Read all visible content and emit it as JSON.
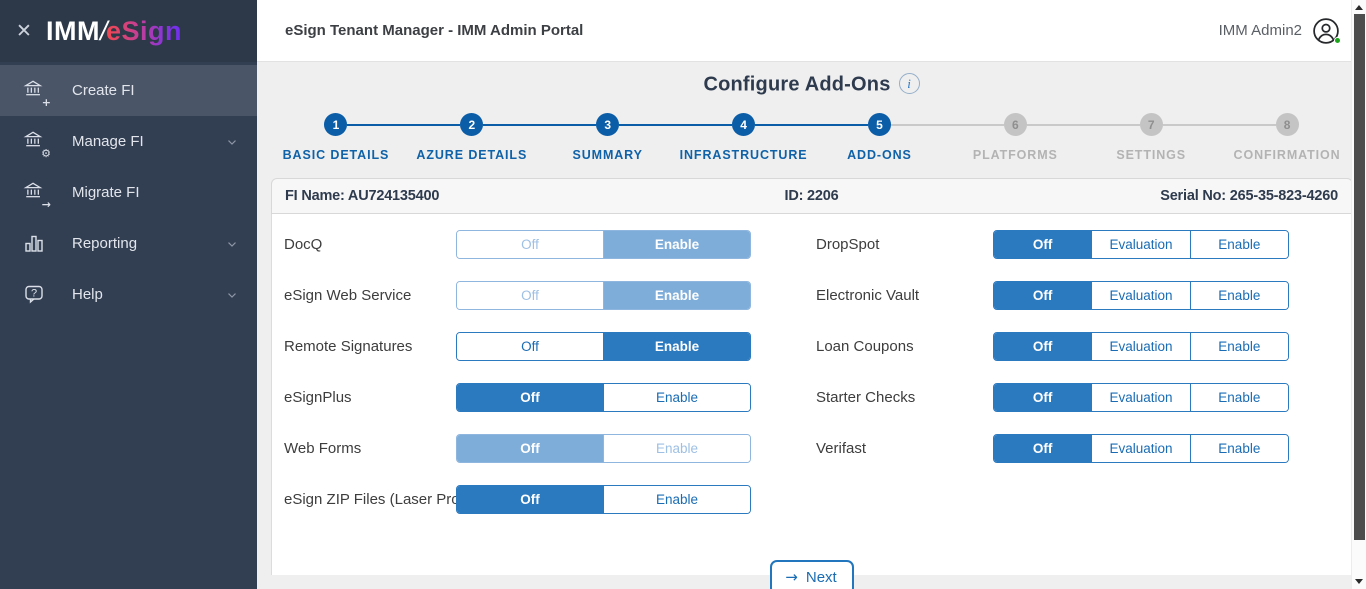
{
  "sidebar": {
    "close_label": "✕",
    "logo": {
      "imm": "IMM",
      "slash": "/",
      "esign": "eSign"
    },
    "items": [
      {
        "label": "Create FI",
        "icon": "bank-plus",
        "active": true,
        "chevron": false
      },
      {
        "label": "Manage FI",
        "icon": "bank-gear",
        "active": false,
        "chevron": true
      },
      {
        "label": "Migrate FI",
        "icon": "bank-arrow",
        "active": false,
        "chevron": false
      },
      {
        "label": "Reporting",
        "icon": "bar-chart",
        "active": false,
        "chevron": true
      },
      {
        "label": "Help",
        "icon": "help-bubble",
        "active": false,
        "chevron": true
      }
    ]
  },
  "header": {
    "title": "eSign Tenant Manager - IMM Admin Portal",
    "user_name": "IMM Admin2"
  },
  "page": {
    "title": "Configure Add-Ons",
    "info_icon": "i"
  },
  "stepper": {
    "steps": [
      {
        "num": "1",
        "label": "BASIC DETAILS",
        "state": "done"
      },
      {
        "num": "2",
        "label": "AZURE DETAILS",
        "state": "done"
      },
      {
        "num": "3",
        "label": "SUMMARY",
        "state": "done"
      },
      {
        "num": "4",
        "label": "INFRASTRUCTURE",
        "state": "done"
      },
      {
        "num": "5",
        "label": "ADD-ONS",
        "state": "active"
      },
      {
        "num": "6",
        "label": "PLATFORMS",
        "state": "pending"
      },
      {
        "num": "7",
        "label": "SETTINGS",
        "state": "pending"
      },
      {
        "num": "8",
        "label": "CONFIRMATION",
        "state": "pending"
      }
    ]
  },
  "fi_bar": {
    "name": "FI Name: AU724135400",
    "id": "ID: 2206",
    "serial": "Serial No: 265-35-823-4260"
  },
  "addons": {
    "left_column": [
      {
        "label": "DocQ",
        "options": [
          "Off",
          "Enable"
        ],
        "selected": "Enable",
        "tone": "light"
      },
      {
        "label": "eSign Web Service",
        "options": [
          "Off",
          "Enable"
        ],
        "selected": "Enable",
        "tone": "light"
      },
      {
        "label": "Remote Signatures",
        "options": [
          "Off",
          "Enable"
        ],
        "selected": "Enable",
        "tone": "dark"
      },
      {
        "label": "eSignPlus",
        "options": [
          "Off",
          "Enable"
        ],
        "selected": "Off",
        "tone": "dark"
      },
      {
        "label": "Web Forms",
        "options": [
          "Off",
          "Enable"
        ],
        "selected": "Off",
        "tone": "light"
      },
      {
        "label": "eSign ZIP Files (Laser Pro)",
        "options": [
          "Off",
          "Enable"
        ],
        "selected": "Off",
        "tone": "dark"
      }
    ],
    "right_column": [
      {
        "label": "DropSpot",
        "options": [
          "Off",
          "Evaluation",
          "Enable"
        ],
        "selected": "Off",
        "tone": "dark"
      },
      {
        "label": "Electronic Vault",
        "options": [
          "Off",
          "Evaluation",
          "Enable"
        ],
        "selected": "Off",
        "tone": "dark"
      },
      {
        "label": "Loan Coupons",
        "options": [
          "Off",
          "Evaluation",
          "Enable"
        ],
        "selected": "Off",
        "tone": "dark"
      },
      {
        "label": "Starter Checks",
        "options": [
          "Off",
          "Evaluation",
          "Enable"
        ],
        "selected": "Off",
        "tone": "dark"
      },
      {
        "label": "Verifast",
        "options": [
          "Off",
          "Evaluation",
          "Enable"
        ],
        "selected": "Off",
        "tone": "dark"
      }
    ]
  },
  "footer": {
    "next_arrow": "→",
    "next_label": "Next"
  },
  "colors": {
    "accent_blue": "#2b79bf",
    "step_blue": "#0b5da8",
    "light_blue": "#7fadd9",
    "pending_gray": "#c4c4c4",
    "online_green": "#1ca61c",
    "sidebar_bg": "#323e52",
    "sidebar_active_bg": "#4a5568"
  }
}
